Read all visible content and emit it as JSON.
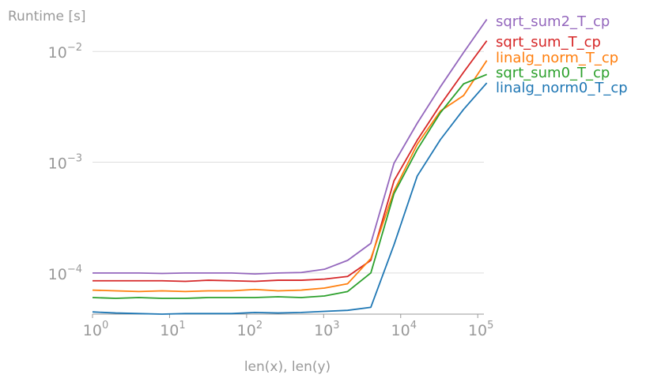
{
  "chart_data": {
    "type": "line",
    "title": "",
    "xlabel": "len(x), len(y)",
    "ylabel": "Runtime [s]",
    "xscale": "log",
    "yscale": "log",
    "xlim": [
      1,
      131072
    ],
    "ylim": [
      4e-05,
      0.02
    ],
    "grid": "horizontal",
    "x_ticks": [
      {
        "value": 1,
        "base": "10",
        "exp": "0"
      },
      {
        "value": 10,
        "base": "10",
        "exp": "1"
      },
      {
        "value": 100,
        "base": "10",
        "exp": "2"
      },
      {
        "value": 1000,
        "base": "10",
        "exp": "3"
      },
      {
        "value": 10000,
        "base": "10",
        "exp": "4"
      },
      {
        "value": 100000,
        "base": "10",
        "exp": "5"
      }
    ],
    "y_ticks": [
      {
        "value": 0.0001,
        "base": "10",
        "exp": "−4"
      },
      {
        "value": 0.001,
        "base": "10",
        "exp": "−3"
      },
      {
        "value": 0.01,
        "base": "10",
        "exp": "−2"
      }
    ],
    "legend": "right, labels at line ends",
    "x": [
      1,
      2,
      4,
      8,
      16,
      32,
      64,
      128,
      256,
      512,
      1024,
      2048,
      4096,
      8192,
      16384,
      32768,
      65536,
      131072
    ],
    "series": [
      {
        "name": "sqrt_sum2_T_cp",
        "color": "#9467bd",
        "values": [
          0.0001,
          0.0001,
          0.0001,
          9.9e-05,
          0.0001,
          0.0001,
          0.0001,
          9.8e-05,
          0.0001,
          0.000101,
          0.000108,
          0.00013,
          0.000185,
          0.00098,
          0.00225,
          0.0048,
          0.0098,
          0.0195
        ]
      },
      {
        "name": "sqrt_sum_T_cp",
        "color": "#d62728",
        "values": [
          8.5e-05,
          8.5e-05,
          8.5e-05,
          8.5e-05,
          8.4e-05,
          8.6e-05,
          8.5e-05,
          8.4e-05,
          8.6e-05,
          8.6e-05,
          8.8e-05,
          9.3e-05,
          0.00013,
          0.00068,
          0.00158,
          0.0033,
          0.0065,
          0.0125
        ]
      },
      {
        "name": "linalg_norm_T_cp",
        "color": "#ff7f0e",
        "values": [
          7e-05,
          6.9e-05,
          6.8e-05,
          6.9e-05,
          6.8e-05,
          6.9e-05,
          6.9e-05,
          7.1e-05,
          6.9e-05,
          7e-05,
          7.3e-05,
          8e-05,
          0.000135,
          0.00055,
          0.00145,
          0.0029,
          0.004,
          0.0083
        ]
      },
      {
        "name": "sqrt_sum0_T_cp",
        "color": "#2ca02c",
        "values": [
          6e-05,
          5.9e-05,
          6e-05,
          5.9e-05,
          5.9e-05,
          6e-05,
          6e-05,
          6e-05,
          6.1e-05,
          6e-05,
          6.2e-05,
          6.8e-05,
          0.0001,
          0.00052,
          0.0013,
          0.0028,
          0.0051,
          0.0062
        ]
      },
      {
        "name": "linalg_norm0_T_cp",
        "color": "#1f77b4",
        "values": [
          4.45e-05,
          4.35e-05,
          4.3e-05,
          4.25e-05,
          4.3e-05,
          4.3e-05,
          4.3e-05,
          4.4e-05,
          4.35e-05,
          4.4e-05,
          4.5e-05,
          4.6e-05,
          4.9e-05,
          0.00018,
          0.00075,
          0.0016,
          0.003,
          0.0052
        ]
      }
    ]
  },
  "colors": {
    "axis_text": "#999999",
    "grid": "#dddddd",
    "spine": "#999999"
  }
}
